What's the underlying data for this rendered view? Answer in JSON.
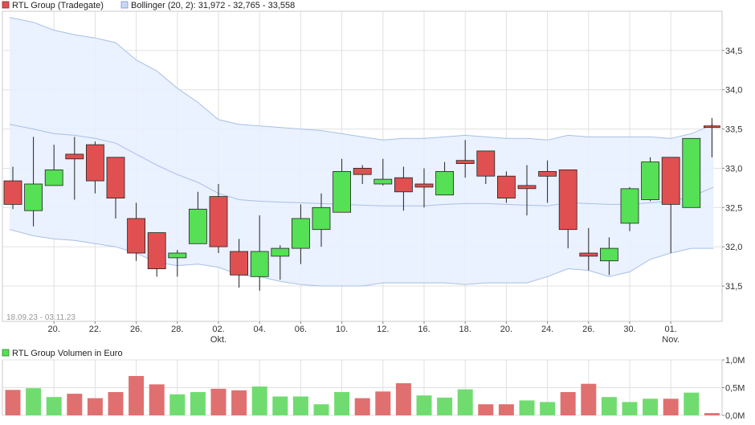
{
  "colors": {
    "up": "#55e055",
    "down": "#e05050",
    "band_fill": "#e8f0ff",
    "band_line": "#a8c0e4",
    "grid": "#e0e0e0",
    "frame": "#c8c8c8",
    "volume_up": "#70dc70",
    "volume_down": "#e07070"
  },
  "legend": {
    "price_label": "RTL Group (Tradegate)",
    "bollinger_label": "Bollinger (20, 2): 31,972 - 32,765 - 33,558",
    "volume_label": "RTL Group Volumen in Euro"
  },
  "date_range": "18.09.23 - 03.11.23",
  "chart_data": [
    {
      "type": "candlestick",
      "title": "",
      "legend_position": "top-left",
      "grid": true,
      "ylim": [
        31.05,
        35.0
      ],
      "y_ticks": [
        {
          "value": 31.5,
          "label": "31,5"
        },
        {
          "value": 32.0,
          "label": "32,0"
        },
        {
          "value": 32.5,
          "label": "32,5"
        },
        {
          "value": 33.0,
          "label": "33,0"
        },
        {
          "value": 33.5,
          "label": "33,5"
        },
        {
          "value": 34.0,
          "label": "34,0"
        },
        {
          "value": 34.5,
          "label": "34,5"
        }
      ],
      "x_ticks": [
        {
          "index": 2,
          "label": "20.",
          "sub": ""
        },
        {
          "index": 4,
          "label": "22.",
          "sub": ""
        },
        {
          "index": 6,
          "label": "26.",
          "sub": ""
        },
        {
          "index": 8,
          "label": "28.",
          "sub": ""
        },
        {
          "index": 10,
          "label": "02.",
          "sub": "Okt."
        },
        {
          "index": 12,
          "label": "04.",
          "sub": ""
        },
        {
          "index": 14,
          "label": "06.",
          "sub": ""
        },
        {
          "index": 16,
          "label": "10.",
          "sub": ""
        },
        {
          "index": 18,
          "label": "12.",
          "sub": ""
        },
        {
          "index": 20,
          "label": "16.",
          "sub": ""
        },
        {
          "index": 22,
          "label": "18.",
          "sub": ""
        },
        {
          "index": 24,
          "label": "20.",
          "sub": ""
        },
        {
          "index": 26,
          "label": "24.",
          "sub": ""
        },
        {
          "index": 28,
          "label": "26.",
          "sub": ""
        },
        {
          "index": 30,
          "label": "30.",
          "sub": ""
        },
        {
          "index": 32,
          "label": "01.",
          "sub": "Nov."
        }
      ],
      "candles": [
        {
          "o": 32.84,
          "h": 33.02,
          "l": 32.48,
          "c": 32.54
        },
        {
          "o": 32.46,
          "h": 33.4,
          "l": 32.26,
          "c": 32.8
        },
        {
          "o": 32.78,
          "h": 33.3,
          "l": 32.78,
          "c": 32.98
        },
        {
          "o": 33.18,
          "h": 33.4,
          "l": 32.6,
          "c": 33.12
        },
        {
          "o": 33.3,
          "h": 33.34,
          "l": 32.68,
          "c": 32.84
        },
        {
          "o": 33.14,
          "h": 33.14,
          "l": 32.36,
          "c": 32.62
        },
        {
          "o": 32.36,
          "h": 32.56,
          "l": 31.82,
          "c": 31.92
        },
        {
          "o": 32.18,
          "h": 32.18,
          "l": 31.62,
          "c": 31.72
        },
        {
          "o": 31.86,
          "h": 31.96,
          "l": 31.62,
          "c": 31.92
        },
        {
          "o": 32.04,
          "h": 32.7,
          "l": 32.04,
          "c": 32.48
        },
        {
          "o": 32.64,
          "h": 32.8,
          "l": 31.92,
          "c": 32.0
        },
        {
          "o": 31.94,
          "h": 32.1,
          "l": 31.48,
          "c": 31.64
        },
        {
          "o": 31.62,
          "h": 32.4,
          "l": 31.44,
          "c": 31.94
        },
        {
          "o": 31.88,
          "h": 32.02,
          "l": 31.58,
          "c": 31.98
        },
        {
          "o": 31.98,
          "h": 32.54,
          "l": 31.78,
          "c": 32.36
        },
        {
          "o": 32.22,
          "h": 32.68,
          "l": 32.0,
          "c": 32.5
        },
        {
          "o": 32.44,
          "h": 33.12,
          "l": 32.44,
          "c": 32.96
        },
        {
          "o": 33.0,
          "h": 33.04,
          "l": 32.8,
          "c": 32.92
        },
        {
          "o": 32.8,
          "h": 33.12,
          "l": 32.78,
          "c": 32.86
        },
        {
          "o": 32.88,
          "h": 33.02,
          "l": 32.46,
          "c": 32.7
        },
        {
          "o": 32.8,
          "h": 33.0,
          "l": 32.5,
          "c": 32.76
        },
        {
          "o": 32.66,
          "h": 33.08,
          "l": 32.66,
          "c": 32.96
        },
        {
          "o": 33.1,
          "h": 33.36,
          "l": 32.88,
          "c": 33.06
        },
        {
          "o": 33.22,
          "h": 33.22,
          "l": 32.8,
          "c": 32.9
        },
        {
          "o": 32.9,
          "h": 32.96,
          "l": 32.56,
          "c": 32.62
        },
        {
          "o": 32.78,
          "h": 33.04,
          "l": 32.4,
          "c": 32.74
        },
        {
          "o": 32.96,
          "h": 33.1,
          "l": 32.56,
          "c": 32.9
        },
        {
          "o": 32.98,
          "h": 32.98,
          "l": 31.98,
          "c": 32.22
        },
        {
          "o": 31.92,
          "h": 32.24,
          "l": 31.7,
          "c": 31.88
        },
        {
          "o": 31.82,
          "h": 32.12,
          "l": 31.64,
          "c": 31.98
        },
        {
          "o": 32.3,
          "h": 32.76,
          "l": 32.2,
          "c": 32.74
        },
        {
          "o": 32.6,
          "h": 33.14,
          "l": 32.58,
          "c": 33.08
        },
        {
          "o": 33.14,
          "h": 33.14,
          "l": 31.92,
          "c": 32.54
        },
        {
          "o": 32.5,
          "h": 33.38,
          "l": 32.5,
          "c": 33.38
        },
        {
          "o": 33.54,
          "h": 33.64,
          "l": 33.14,
          "c": 33.52
        }
      ],
      "bollinger": {
        "upper": [
          34.92,
          34.86,
          34.76,
          34.7,
          34.66,
          34.6,
          34.38,
          34.24,
          34.02,
          33.84,
          33.62,
          33.56,
          33.54,
          33.52,
          33.5,
          33.48,
          33.44,
          33.4,
          33.36,
          33.38,
          33.38,
          33.4,
          33.42,
          33.4,
          33.38,
          33.38,
          33.36,
          33.42,
          33.4,
          33.4,
          33.4,
          33.4,
          33.38,
          33.44,
          33.56
        ],
        "middle": [
          33.56,
          33.5,
          33.44,
          33.42,
          33.38,
          33.32,
          33.18,
          33.04,
          32.92,
          32.82,
          32.68,
          32.6,
          32.58,
          32.57,
          32.56,
          32.55,
          32.54,
          32.53,
          32.52,
          32.52,
          32.52,
          32.54,
          32.55,
          32.55,
          32.54,
          32.53,
          32.52,
          32.56,
          32.55,
          32.54,
          32.54,
          32.56,
          32.58,
          32.64,
          32.76
        ],
        "lower": [
          32.22,
          32.14,
          32.1,
          32.08,
          32.04,
          32.0,
          31.92,
          31.8,
          31.76,
          31.78,
          31.74,
          31.64,
          31.62,
          31.56,
          31.52,
          31.5,
          31.5,
          31.5,
          31.54,
          31.54,
          31.54,
          31.54,
          31.52,
          31.54,
          31.54,
          31.54,
          31.62,
          31.72,
          31.7,
          31.62,
          31.68,
          31.84,
          31.92,
          31.98,
          31.98
        ]
      }
    },
    {
      "type": "bar",
      "title": "",
      "legend_position": "top-left",
      "grid": true,
      "ylim": [
        0,
        1.0
      ],
      "y_ticks": [
        {
          "value": 0,
          "label": "0,0M"
        },
        {
          "value": 0.5,
          "label": "0,5M"
        },
        {
          "value": 1.0,
          "label": "1,0M"
        }
      ],
      "values": [
        0.46,
        0.49,
        0.33,
        0.39,
        0.31,
        0.42,
        0.71,
        0.56,
        0.38,
        0.42,
        0.48,
        0.45,
        0.52,
        0.34,
        0.34,
        0.2,
        0.42,
        0.31,
        0.43,
        0.58,
        0.36,
        0.32,
        0.47,
        0.2,
        0.2,
        0.27,
        0.24,
        0.42,
        0.57,
        0.33,
        0.24,
        0.3,
        0.3,
        0.41,
        0.04
      ],
      "directions": [
        "down",
        "up",
        "up",
        "down",
        "down",
        "down",
        "down",
        "down",
        "up",
        "up",
        "down",
        "down",
        "up",
        "up",
        "up",
        "up",
        "up",
        "down",
        "down",
        "down",
        "up",
        "up",
        "up",
        "down",
        "down",
        "up",
        "up",
        "down",
        "down",
        "up",
        "up",
        "up",
        "down",
        "up",
        "down"
      ]
    }
  ]
}
